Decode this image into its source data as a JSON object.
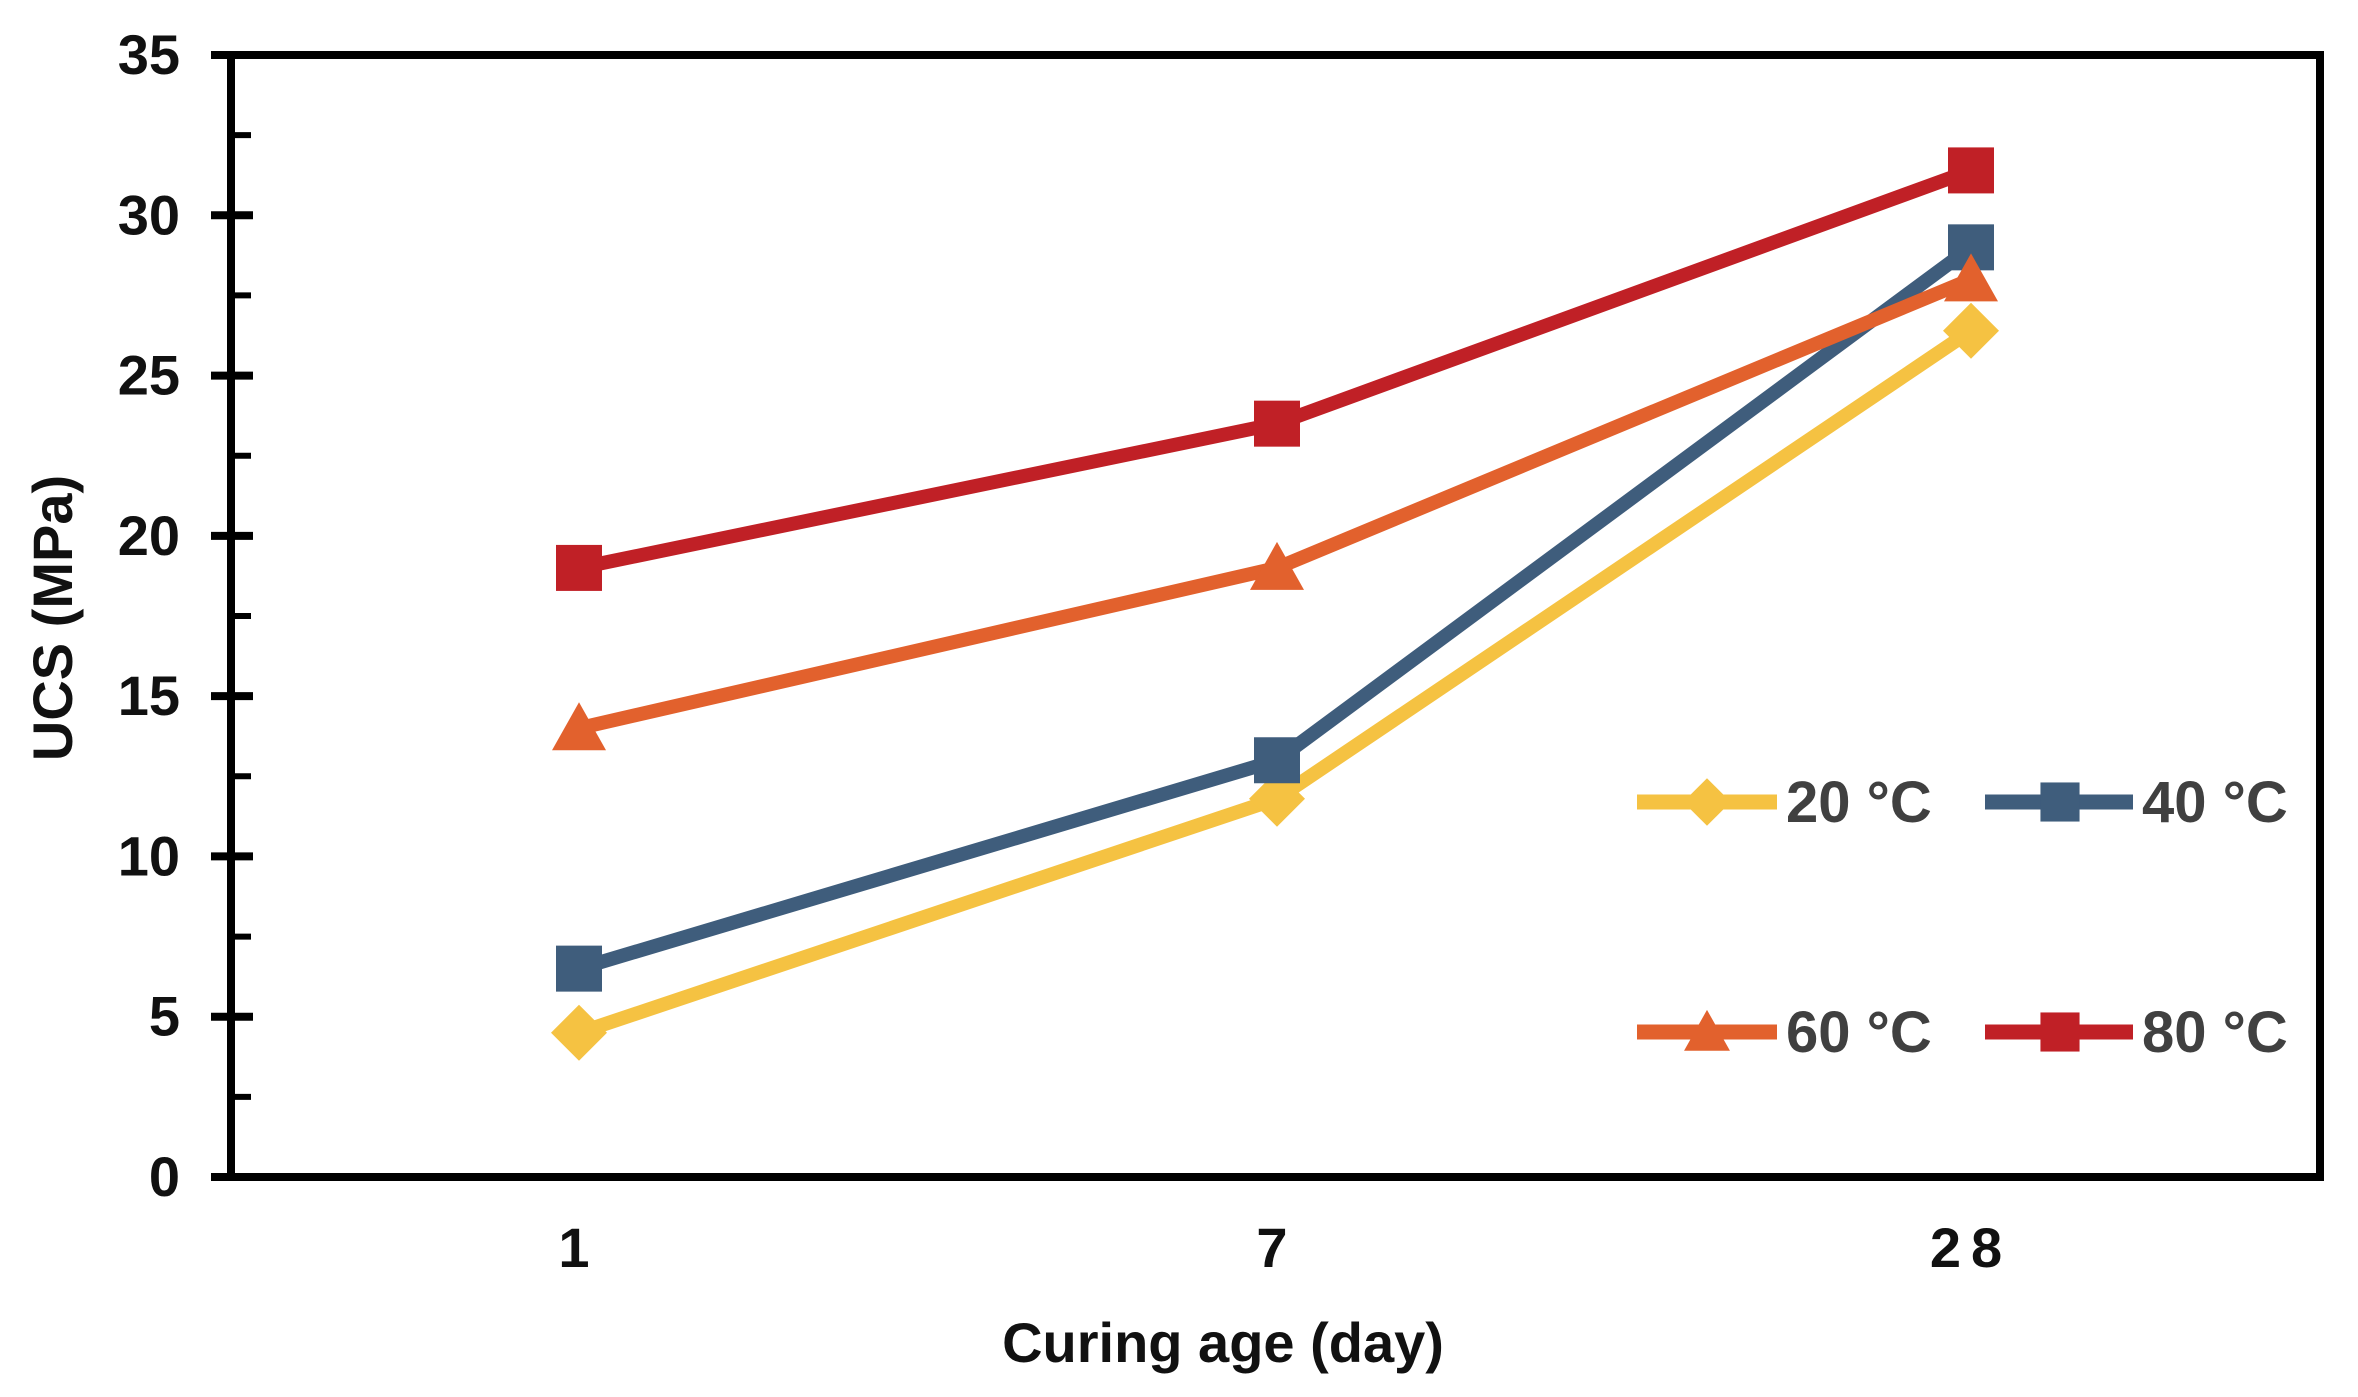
{
  "figure": {
    "background": "#FFFFFF",
    "axis_color": "#000000",
    "tick_label_color": "#111111",
    "legend_text_color": "#404040"
  },
  "chart_data": {
    "type": "line",
    "title": "",
    "xlabel": "Curing age (day)",
    "ylabel": "UCS (MPa)",
    "categories": [
      "1",
      "7",
      "28"
    ],
    "x_values_days": [
      1,
      7,
      28
    ],
    "ylim": [
      0,
      35
    ],
    "ytick_step": 5,
    "ytick_minor_step": 2.5,
    "yticks": [
      "0",
      "5",
      "10",
      "15",
      "20",
      "25",
      "30",
      "35"
    ],
    "grid": false,
    "legend_position": "inside right, two rows",
    "series": [
      {
        "name": "20 °C",
        "color": "#F5C242",
        "marker": "diamond",
        "values": [
          4.5,
          11.8,
          26.4
        ]
      },
      {
        "name": "40 °C",
        "color": "#3F5D7C",
        "marker": "square",
        "values": [
          6.5,
          13.0,
          29.0
        ]
      },
      {
        "name": "60 °C",
        "color": "#E2612D",
        "marker": "triangle",
        "values": [
          14.0,
          19.0,
          28.0
        ]
      },
      {
        "name": "80 °C",
        "color": "#C02026",
        "marker": "square",
        "values": [
          19.0,
          23.5,
          31.4
        ]
      }
    ]
  }
}
